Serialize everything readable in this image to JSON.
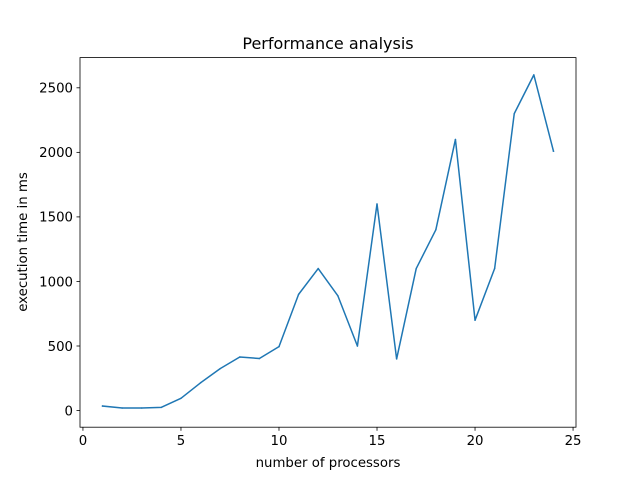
{
  "chart_data": {
    "type": "line",
    "title": "Performance analysis",
    "xlabel": "number of processors",
    "ylabel": "execution time in ms",
    "xlim": [
      -0.15,
      25.15
    ],
    "ylim": [
      -129.0,
      2734.0
    ],
    "xticks": [
      0,
      5,
      10,
      15,
      20,
      25
    ],
    "xtick_labels": [
      "0",
      "5",
      "10",
      "15",
      "20",
      "25"
    ],
    "yticks": [
      0,
      500,
      1000,
      1500,
      2000,
      2500
    ],
    "ytick_labels": [
      "0",
      "500",
      "1000",
      "1500",
      "2000",
      "2500"
    ],
    "grid": false,
    "series": [
      {
        "color": "#1f77b4",
        "x": [
          1,
          2,
          3,
          4,
          5,
          6,
          7,
          8,
          9,
          10,
          11,
          12,
          13,
          14,
          15,
          16,
          17,
          18,
          19,
          20,
          21,
          22,
          23,
          24
        ],
        "y": [
          35,
          20,
          20,
          25,
          95,
          215,
          325,
          415,
          403,
          495,
          900,
          1100,
          890,
          500,
          1600,
          400,
          1100,
          1400,
          2100,
          700,
          1100,
          2300,
          2600,
          2010
        ]
      }
    ]
  }
}
